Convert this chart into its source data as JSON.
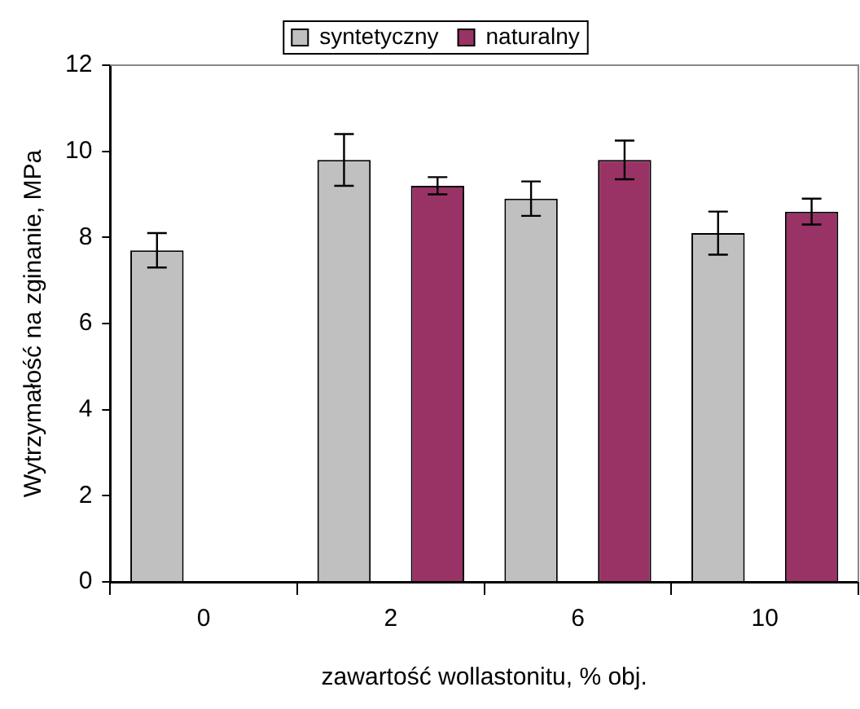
{
  "chart_data": {
    "type": "bar",
    "xlabel": "zawartość wollastonitu, % obj.",
    "ylabel": "Wytrzymałość na zginanie, MPa",
    "categories": [
      "0",
      "2",
      "6",
      "10"
    ],
    "series": [
      {
        "name": "syntetyczny",
        "color": "#c0c0c0",
        "values": [
          7.7,
          9.8,
          8.9,
          8.1
        ],
        "errors": [
          0.4,
          0.6,
          0.4,
          0.5
        ]
      },
      {
        "name": "naturalny",
        "color": "#993366",
        "values": [
          null,
          9.2,
          9.8,
          8.6
        ],
        "errors": [
          null,
          0.2,
          0.45,
          0.3
        ]
      }
    ],
    "ylim": [
      0,
      12
    ],
    "yticks": [
      0,
      2,
      4,
      6,
      8,
      10,
      12
    ],
    "grid": false,
    "legend": "top"
  }
}
